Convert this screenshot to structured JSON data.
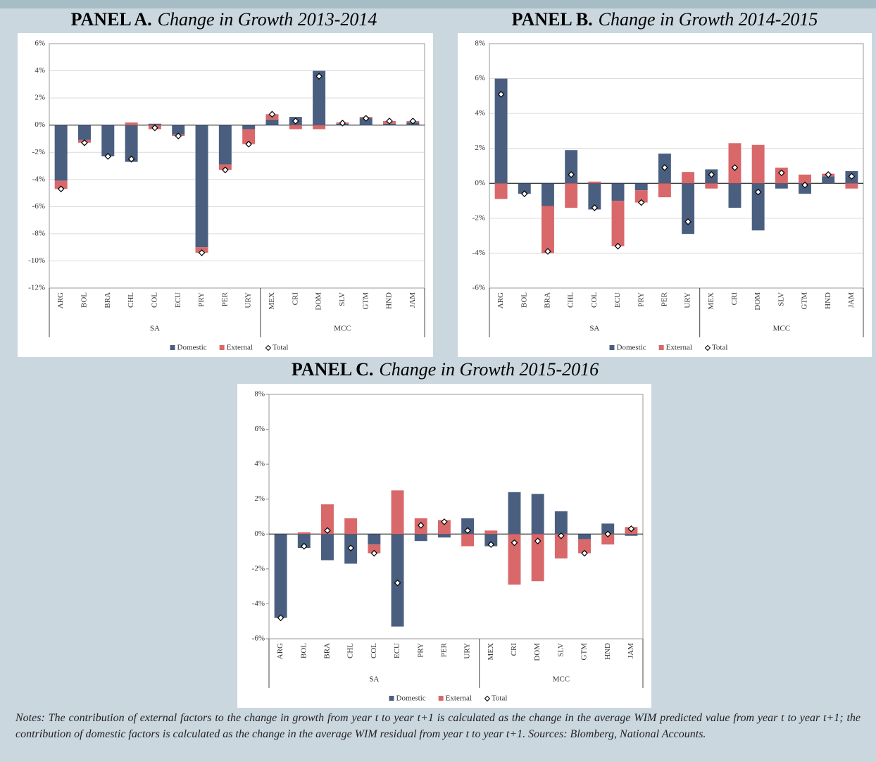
{
  "chart_data": [
    {
      "type": "bar",
      "stacked": true,
      "grid": true,
      "panel": "PANEL A.",
      "title": "Change in Growth 2013-2014",
      "groups": [
        {
          "label": "SA",
          "categories": [
            "ARG",
            "BOL",
            "BRA",
            "CHL",
            "COL",
            "ECU",
            "PRY",
            "PER",
            "URY"
          ]
        },
        {
          "label": "MCC",
          "categories": [
            "MEX",
            "CRI",
            "DOM",
            "SLV",
            "GTM",
            "HND",
            "JAM"
          ]
        }
      ],
      "series": [
        {
          "name": "Domestic",
          "color": "#4a5f80",
          "values": [
            -4.1,
            -1.1,
            -2.3,
            -2.7,
            0.1,
            -0.7,
            -9.0,
            -2.9,
            -0.3,
            0.4,
            0.6,
            4.0,
            0.1,
            0.5,
            0.1,
            0.2
          ]
        },
        {
          "name": "External",
          "color": "#d9686a",
          "values": [
            -0.6,
            -0.2,
            0,
            0.2,
            -0.3,
            -0.1,
            -0.4,
            -0.4,
            -1.1,
            0.4,
            -0.3,
            -0.3,
            0.1,
            0.1,
            0.2,
            0.1
          ]
        }
      ],
      "total": {
        "name": "Total",
        "values": [
          -4.7,
          -1.3,
          -2.3,
          -2.5,
          -0.2,
          -0.8,
          -9.4,
          -3.3,
          -1.4,
          0.8,
          0.3,
          3.6,
          0.15,
          0.5,
          0.3,
          0.3
        ]
      },
      "ylim": [
        -12,
        6
      ],
      "yticks": [
        {
          "value": -12,
          "label": "-12%"
        },
        {
          "value": -10,
          "label": "-10%"
        },
        {
          "value": -8,
          "label": "-8%"
        },
        {
          "value": -6,
          "label": "-6%"
        },
        {
          "value": -4,
          "label": "-4%"
        },
        {
          "value": -2,
          "label": "-2%"
        },
        {
          "value": 0,
          "label": "0%"
        },
        {
          "value": 2,
          "label": "2%"
        },
        {
          "value": 4,
          "label": "4%"
        },
        {
          "value": 6,
          "label": "6%"
        }
      ]
    },
    {
      "type": "bar",
      "stacked": true,
      "grid": true,
      "panel": "PANEL B.",
      "title": "Change in Growth 2014-2015",
      "groups": [
        {
          "label": "SA",
          "categories": [
            "ARG",
            "BOL",
            "BRA",
            "CHL",
            "COL",
            "ECU",
            "PRY",
            "PER",
            "URY"
          ]
        },
        {
          "label": "MCC",
          "categories": [
            "MEX",
            "CRI",
            "DOM",
            "SLV",
            "GTM",
            "HND",
            "JAM"
          ]
        }
      ],
      "series": [
        {
          "name": "Domestic",
          "color": "#4a5f80",
          "values": [
            6.0,
            -0.6,
            -1.3,
            1.9,
            -1.5,
            -1.0,
            -0.4,
            1.7,
            -2.9,
            0.8,
            -1.4,
            -2.7,
            -0.3,
            -0.6,
            0.4,
            0.7
          ]
        },
        {
          "name": "External",
          "color": "#d9686a",
          "values": [
            -0.9,
            0,
            -2.7,
            -1.4,
            0.1,
            -2.6,
            -0.7,
            -0.8,
            0.65,
            -0.3,
            2.3,
            2.2,
            0.9,
            0.5,
            0.15,
            -0.3
          ]
        }
      ],
      "total": {
        "name": "Total",
        "values": [
          5.1,
          -0.6,
          -3.9,
          0.5,
          -1.4,
          -3.6,
          -1.1,
          0.9,
          -2.2,
          0.5,
          0.9,
          -0.5,
          0.6,
          -0.1,
          0.5,
          0.4
        ]
      },
      "ylim": [
        -6,
        8
      ],
      "yticks": [
        {
          "value": -6,
          "label": "-6%"
        },
        {
          "value": -4,
          "label": "-4%"
        },
        {
          "value": -2,
          "label": "-2%"
        },
        {
          "value": 0,
          "label": "0%"
        },
        {
          "value": 2,
          "label": "2%"
        },
        {
          "value": 4,
          "label": "4%"
        },
        {
          "value": 6,
          "label": "6%"
        },
        {
          "value": 8,
          "label": "8%"
        }
      ]
    },
    {
      "type": "bar",
      "stacked": true,
      "grid": false,
      "panel": "PANEL C.",
      "title": "Change in Growth 2015-2016",
      "groups": [
        {
          "label": "SA",
          "categories": [
            "ARG",
            "BOL",
            "BRA",
            "CHL",
            "COL",
            "ECU",
            "PRY",
            "PER",
            "URY"
          ]
        },
        {
          "label": "MCC",
          "categories": [
            "MEX",
            "CRI",
            "DOM",
            "SLV",
            "GTM",
            "HND",
            "JAM"
          ]
        }
      ],
      "series": [
        {
          "name": "Domestic",
          "color": "#4a5f80",
          "values": [
            -4.8,
            -0.8,
            -1.5,
            -1.7,
            -0.6,
            -5.3,
            -0.4,
            -0.2,
            0.9,
            -0.7,
            2.4,
            2.3,
            1.3,
            -0.3,
            0.6,
            -0.1
          ]
        },
        {
          "name": "External",
          "color": "#d9686a",
          "values": [
            0,
            0.1,
            1.7,
            0.9,
            -0.5,
            2.5,
            0.9,
            0.8,
            -0.7,
            0.2,
            -2.9,
            -2.7,
            -1.4,
            -0.8,
            -0.6,
            0.4
          ]
        }
      ],
      "total": {
        "name": "Total",
        "values": [
          -4.8,
          -0.7,
          0.2,
          -0.8,
          -1.1,
          -2.8,
          0.5,
          0.7,
          0.2,
          -0.6,
          -0.5,
          -0.4,
          -0.1,
          -1.1,
          0.0,
          0.3
        ]
      },
      "ylim": [
        -6,
        8
      ],
      "yticks": [
        {
          "value": -6,
          "label": "-6%"
        },
        {
          "value": -4,
          "label": "-4%"
        },
        {
          "value": -2,
          "label": "-2%"
        },
        {
          "value": 0,
          "label": "0%"
        },
        {
          "value": 2,
          "label": "2%"
        },
        {
          "value": 4,
          "label": "4%"
        },
        {
          "value": 6,
          "label": "6%"
        },
        {
          "value": 8,
          "label": "8%"
        }
      ]
    }
  ],
  "notes": "Notes: The contribution of external factors to the change in growth from year t to year t+1 is calculated as the change in the average WIM predicted value from year t to year t+1; the contribution of domestic factors is calculated as the change in the average WIM residual from year t to year t+1. Sources: Blomberg, National Accounts."
}
